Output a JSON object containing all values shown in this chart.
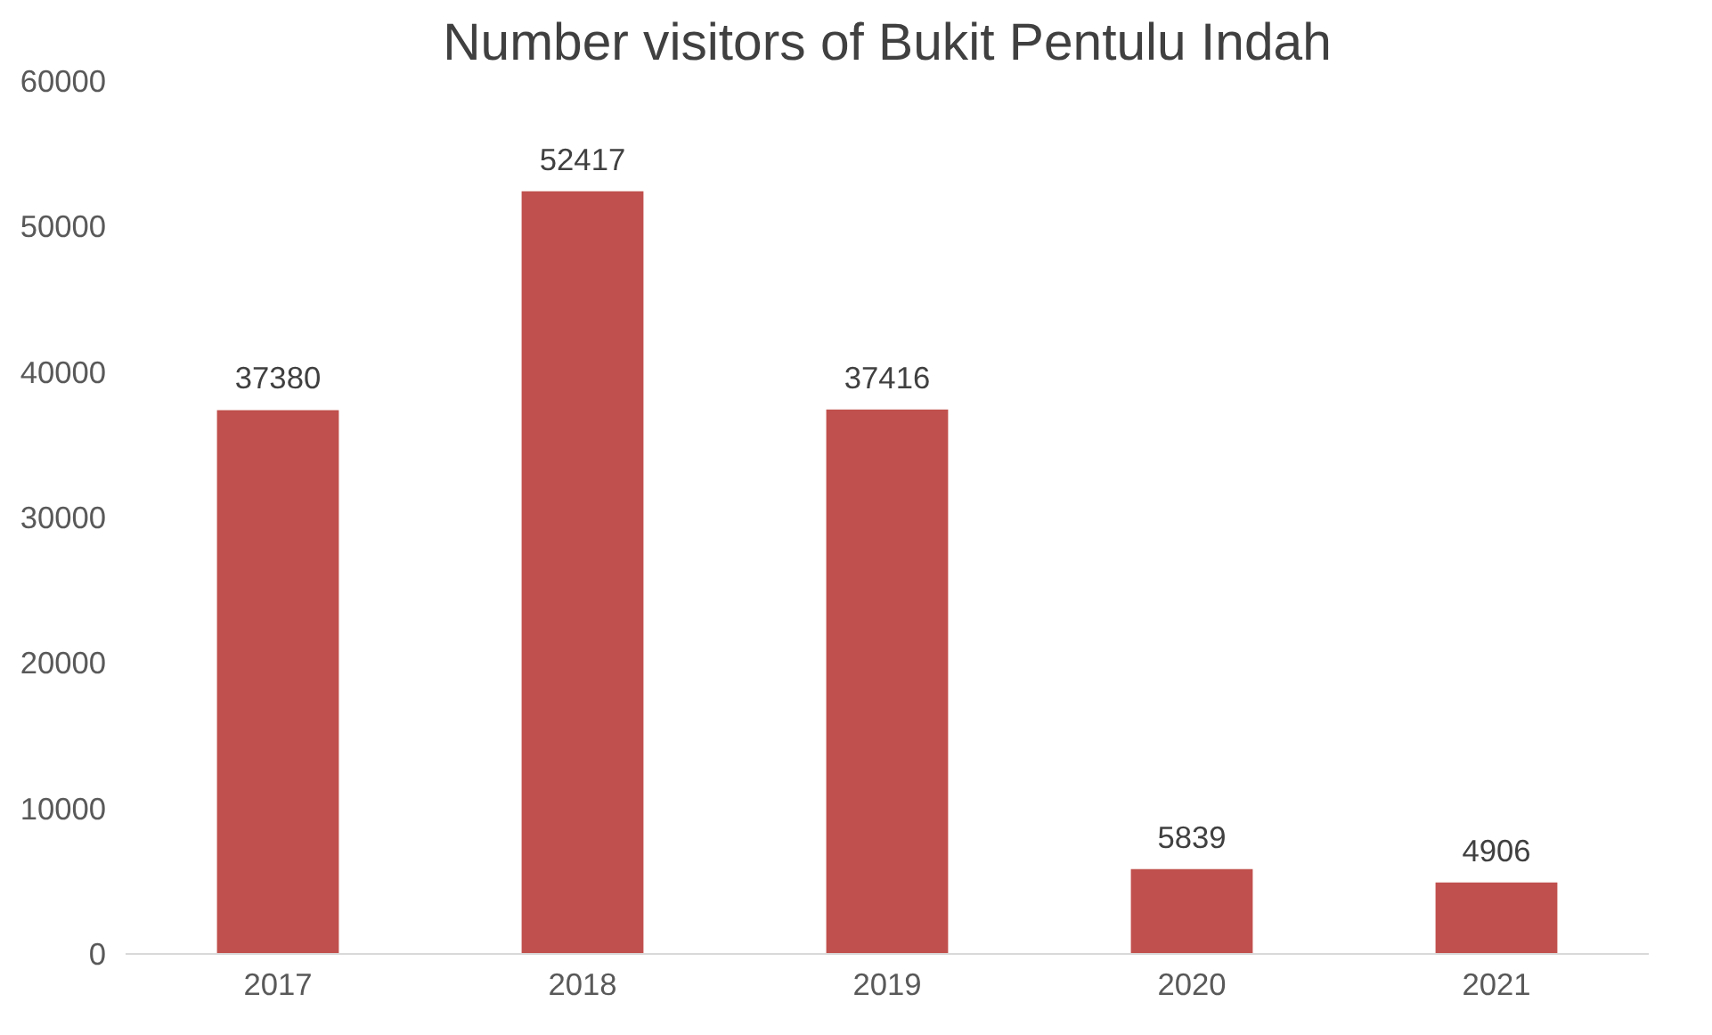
{
  "chart_data": {
    "type": "bar",
    "title": "Number visitors of Bukit Pentulu Indah",
    "categories": [
      "2017",
      "2018",
      "2019",
      "2020",
      "2021"
    ],
    "values": [
      37380,
      52417,
      37416,
      5839,
      4906
    ],
    "color": "#c0504d",
    "ylim": [
      0,
      60000
    ],
    "yticks": [
      0,
      10000,
      20000,
      30000,
      40000,
      50000,
      60000
    ],
    "grid": false,
    "data_labels": true
  }
}
